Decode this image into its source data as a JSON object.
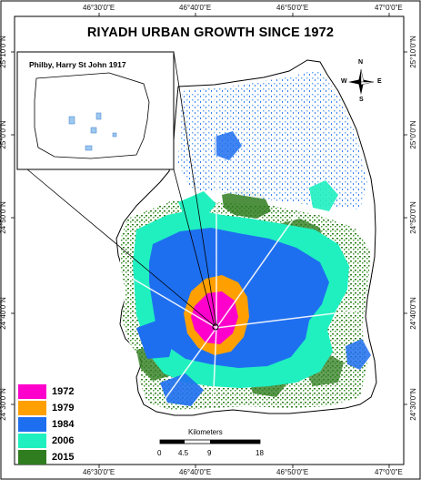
{
  "map": {
    "title": "RIYADH URBAN GROWTH SINCE 1972",
    "inset_caption": "Philby, Harry St John 1917"
  },
  "ticks": {
    "top": [
      "46°30'0\"E",
      "46°40'0\"E",
      "46°50'0\"E",
      "47°0'0\"E"
    ],
    "bottom": [
      "46°30'0\"E",
      "46°40'0\"E",
      "46°50'0\"E",
      "47°0'0\"E"
    ],
    "left": [
      "25°10'0\"N",
      "25°0'0\"N",
      "24°50'0\"N",
      "24°40'0\"N",
      "24°30'0\"N"
    ],
    "right": [
      "25°10'0\"N",
      "25°0'0\"N",
      "24°50'0\"N",
      "24°40'0\"N",
      "24°30'0\"N"
    ]
  },
  "compass": {
    "n": "N",
    "s": "S",
    "e": "E",
    "w": "W"
  },
  "legend": [
    {
      "label": "1972",
      "color": "#ff00cc"
    },
    {
      "label": "1979",
      "color": "#ffa000"
    },
    {
      "label": "1984",
      "color": "#1e6ff0"
    },
    {
      "label": "2006",
      "color": "#20f0c0"
    },
    {
      "label": "2015",
      "color": "#2f7d1f"
    }
  ],
  "scale": {
    "title": "Kilometers",
    "labels": [
      "0",
      "4.5",
      "9",
      "18"
    ]
  }
}
